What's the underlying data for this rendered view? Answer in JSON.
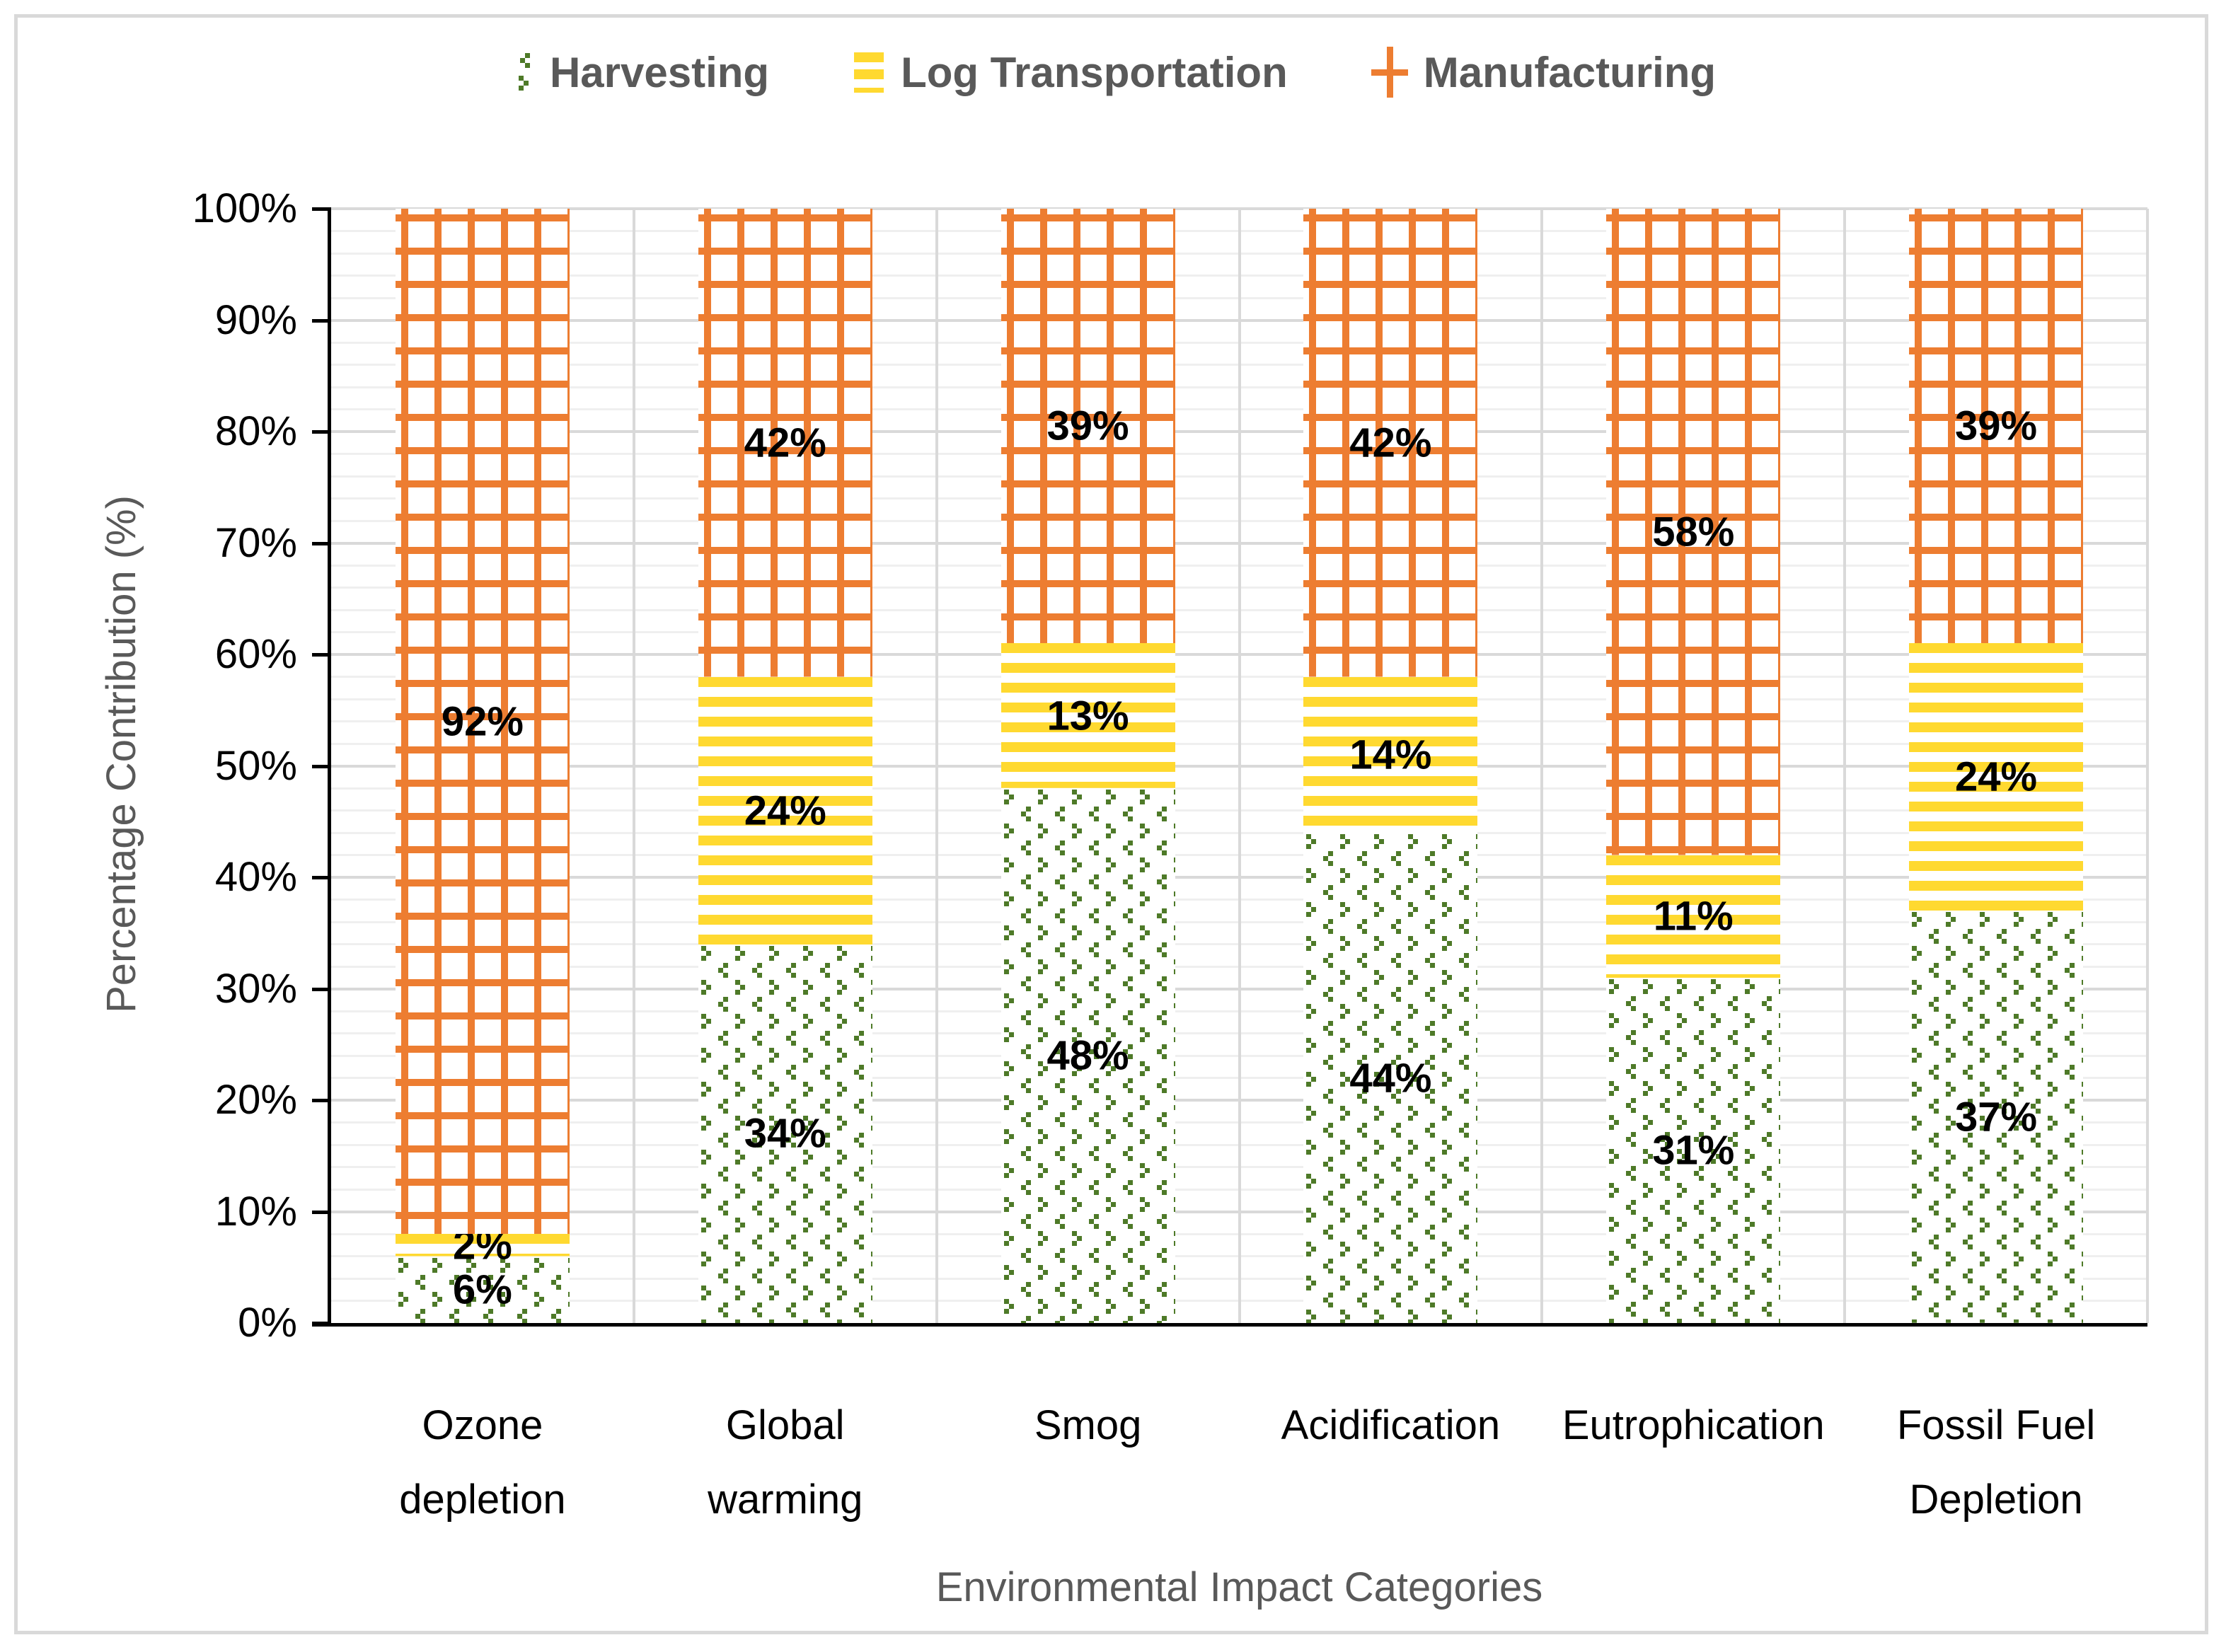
{
  "legend": {
    "items": [
      "Harvesting",
      "Log Transportation",
      "Manufacturing"
    ]
  },
  "axes": {
    "y_title": "Percentage Contribution (%)",
    "x_title": "Environmental Impact Categories",
    "y_tick_labels": [
      "0%",
      "10%",
      "20%",
      "30%",
      "40%",
      "50%",
      "60%",
      "70%",
      "80%",
      "90%",
      "100%"
    ]
  },
  "chart_data": {
    "type": "bar",
    "stacked": true,
    "title": "",
    "xlabel": "Environmental Impact Categories",
    "ylabel": "Percentage Contribution (%)",
    "ylim": [
      0,
      100
    ],
    "y_major_step": 10,
    "y_minor_step": 2,
    "grid": true,
    "legend_position": "top",
    "categories": [
      "Ozone depletion",
      "Global warming",
      "Smog",
      "Acidification",
      "Eutrophication",
      "Fossil Fuel Depletion"
    ],
    "category_display_lines": [
      [
        "Ozone",
        "depletion"
      ],
      [
        "Global",
        "warming"
      ],
      [
        "Smog"
      ],
      [
        "Acidification"
      ],
      [
        "Eutrophication"
      ],
      [
        "Fossil Fuel",
        "Depletion"
      ]
    ],
    "series": [
      {
        "name": "Harvesting",
        "pattern": "dotted-diamond",
        "color": "#4E7A28",
        "values": [
          6,
          34,
          48,
          44,
          31,
          37
        ]
      },
      {
        "name": "Log Transportation",
        "pattern": "horizontal-stripes",
        "color": "#FFD930",
        "values": [
          2,
          24,
          13,
          14,
          11,
          24
        ]
      },
      {
        "name": "Manufacturing",
        "pattern": "grid-crosshatch",
        "color": "#ED7D31",
        "values": [
          92,
          42,
          39,
          42,
          58,
          39
        ]
      }
    ],
    "data_label_format": "{value}%",
    "colors": {
      "axis": "#000000",
      "label_text": "#000000",
      "muted_text": "#595959",
      "grid_major": "#D9D9D9",
      "grid_minor": "#EFEFEF",
      "border": "#D9D9D9",
      "background": "#FFFFFF"
    }
  }
}
